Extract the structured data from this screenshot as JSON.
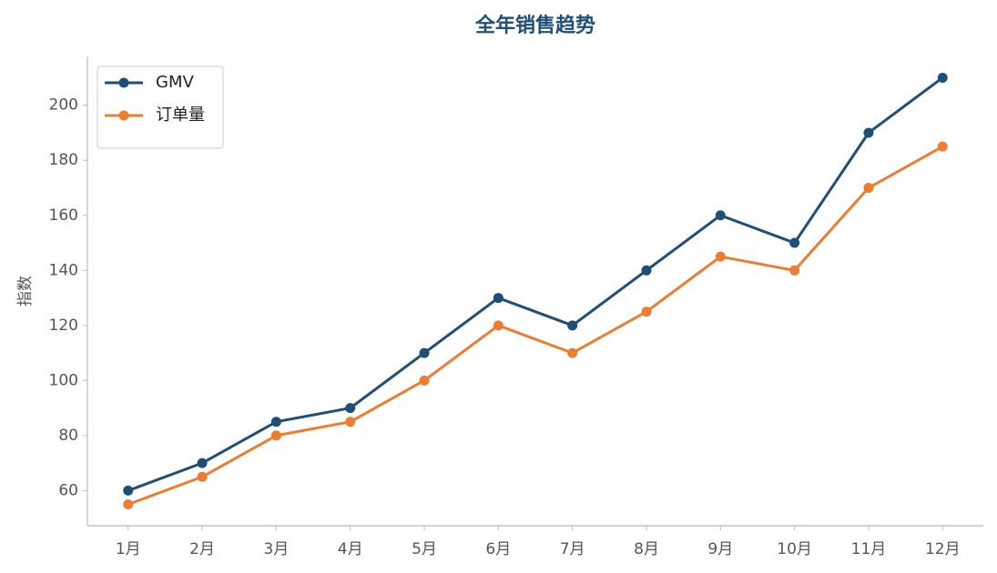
{
  "chart_data": {
    "type": "line",
    "title": "全年销售趋势",
    "y_label": "指数",
    "categories": [
      "1月",
      "2月",
      "3月",
      "4月",
      "5月",
      "6月",
      "7月",
      "8月",
      "9月",
      "10月",
      "11月",
      "12月"
    ],
    "series": [
      {
        "name": "GMV",
        "color": "#1f4e79",
        "values": [
          60,
          70,
          85,
          90,
          110,
          130,
          120,
          140,
          160,
          150,
          190,
          210
        ]
      },
      {
        "name": "订单量",
        "color": "#ed7d31",
        "values": [
          55,
          65,
          80,
          85,
          100,
          120,
          110,
          125,
          145,
          140,
          170,
          185
        ]
      }
    ],
    "ylim": [
      47.25,
      217.75
    ],
    "yticks": [
      60,
      80,
      100,
      120,
      140,
      160,
      180,
      200
    ],
    "grid": false,
    "legend": "upper left"
  }
}
